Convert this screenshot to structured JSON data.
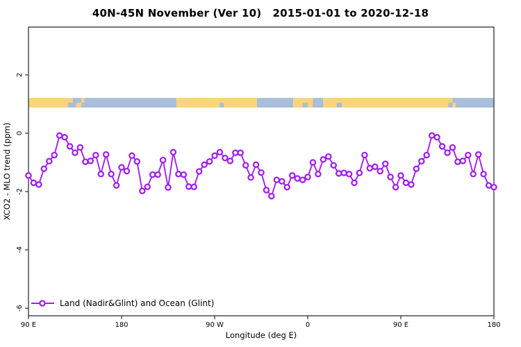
{
  "colors": {
    "series_purple": "#A020F0",
    "land_band": "#FAD47C",
    "ocean_band": "#A9BEDB",
    "axis": "#303030",
    "text": "#000000",
    "marker_fill": "#FFFFFF"
  },
  "chart_data": {
    "type": "line",
    "title": "40N-45N November (Ver 10)   2015-01-01 to 2020-12-18",
    "xlabel": "Longitude (deg E)",
    "ylabel": "XCO2 - MLO trend (ppm)",
    "xlim": [
      90,
      540
    ],
    "ylim": [
      -6.26,
      3.64
    ],
    "grid": "off",
    "x_ticks": [
      {
        "v": 90,
        "label": "90 E"
      },
      {
        "v": 180,
        "label": "180"
      },
      {
        "v": 270,
        "label": "90 W"
      },
      {
        "v": 360,
        "label": "0"
      },
      {
        "v": 450,
        "label": "90 E"
      },
      {
        "v": 540,
        "label": "180"
      }
    ],
    "y_ticks": [
      {
        "v": 2,
        "label": "2"
      },
      {
        "v": 0,
        "label": "0"
      },
      {
        "v": -2,
        "label": "-2"
      },
      {
        "v": -4,
        "label": "-4"
      },
      {
        "v": -6,
        "label": "-6"
      }
    ],
    "legend": {
      "position": "bottom-left",
      "label": "Land (Nadir&Glint) and Ocean (Glint)"
    },
    "surface_band": {
      "description": "land/ocean mask strip near y=1",
      "y_range": [
        0.88,
        1.21
      ],
      "segments": [
        {
          "from": 90,
          "to": 128,
          "type": "land"
        },
        {
          "from": 128,
          "to": 233,
          "type": "ocean"
        },
        {
          "from": 233,
          "to": 311,
          "type": "land"
        },
        {
          "from": 311,
          "to": 346,
          "type": "ocean"
        },
        {
          "from": 346,
          "to": 365,
          "type": "land"
        },
        {
          "from": 365,
          "to": 375,
          "type": "ocean"
        },
        {
          "from": 375,
          "to": 496,
          "type": "land"
        },
        {
          "from": 496,
          "to": 540,
          "type": "ocean"
        }
      ],
      "patches": [
        {
          "from": 128,
          "to": 133,
          "type": "land",
          "part": "top"
        },
        {
          "from": 136,
          "to": 141,
          "type": "land",
          "part": "bottom"
        },
        {
          "from": 141,
          "to": 144,
          "type": "land",
          "part": "top"
        },
        {
          "from": 275,
          "to": 279,
          "type": "ocean",
          "part": "bottom"
        },
        {
          "from": 355,
          "to": 360,
          "type": "ocean",
          "part": "bottom"
        },
        {
          "from": 388,
          "to": 393,
          "type": "ocean",
          "part": "bottom"
        },
        {
          "from": 496,
          "to": 500,
          "type": "land",
          "part": "top"
        },
        {
          "from": 500,
          "to": 503,
          "type": "land",
          "part": "bottom"
        }
      ]
    },
    "series": [
      {
        "name": "Land (Nadir&Glint) and Ocean (Glint)",
        "color": "#A020F0",
        "marker": "open-circle",
        "x": [
          90,
          95,
          100,
          105,
          110,
          115,
          120,
          125,
          130,
          135,
          140,
          145,
          150,
          155,
          160,
          165,
          170,
          175,
          180,
          185,
          190,
          195,
          200,
          205,
          210,
          215,
          220,
          225,
          230,
          235,
          240,
          245,
          250,
          255,
          260,
          265,
          270,
          275,
          280,
          285,
          290,
          295,
          300,
          305,
          310,
          315,
          320,
          325,
          330,
          335,
          340,
          345,
          350,
          355,
          360,
          365,
          370,
          375,
          380,
          385,
          390,
          395,
          400,
          405,
          410,
          415,
          420,
          425,
          430,
          435,
          440,
          445,
          450,
          455,
          460,
          465,
          470,
          475,
          480,
          485,
          490,
          495,
          500,
          505,
          510,
          515,
          520,
          525,
          530,
          535,
          540
        ],
        "y": [
          -1.45,
          -1.7,
          -1.76,
          -1.22,
          -0.96,
          -0.75,
          -0.08,
          -0.14,
          -0.45,
          -0.67,
          -0.49,
          -0.98,
          -0.95,
          -0.75,
          -1.4,
          -0.73,
          -1.4,
          -1.79,
          -1.17,
          -1.3,
          -0.77,
          -0.97,
          -1.98,
          -1.84,
          -1.42,
          -1.42,
          -0.92,
          -1.86,
          -0.65,
          -1.4,
          -1.42,
          -1.83,
          -1.84,
          -1.31,
          -1.08,
          -0.97,
          -0.77,
          -0.65,
          -0.85,
          -0.95,
          -0.67,
          -0.67,
          -1.1,
          -1.52,
          -1.08,
          -1.35,
          -1.95,
          -2.16,
          -1.6,
          -1.65,
          -1.85,
          -1.45,
          -1.55,
          -1.6,
          -1.5,
          -1.0,
          -1.4,
          -0.9,
          -0.8,
          -1.1,
          -1.38,
          -1.36,
          -1.4,
          -1.7,
          -1.36,
          -0.75,
          -1.2,
          -1.15,
          -1.3,
          -1.05,
          -1.5,
          -1.85,
          -1.45,
          -1.7,
          -1.76,
          -1.22,
          -0.96,
          -0.75,
          -0.08,
          -0.14,
          -0.45,
          -0.67,
          -0.49,
          -0.98,
          -0.95,
          -0.75,
          -1.4,
          -0.73,
          -1.4,
          -1.79,
          -1.85
        ]
      }
    ]
  }
}
